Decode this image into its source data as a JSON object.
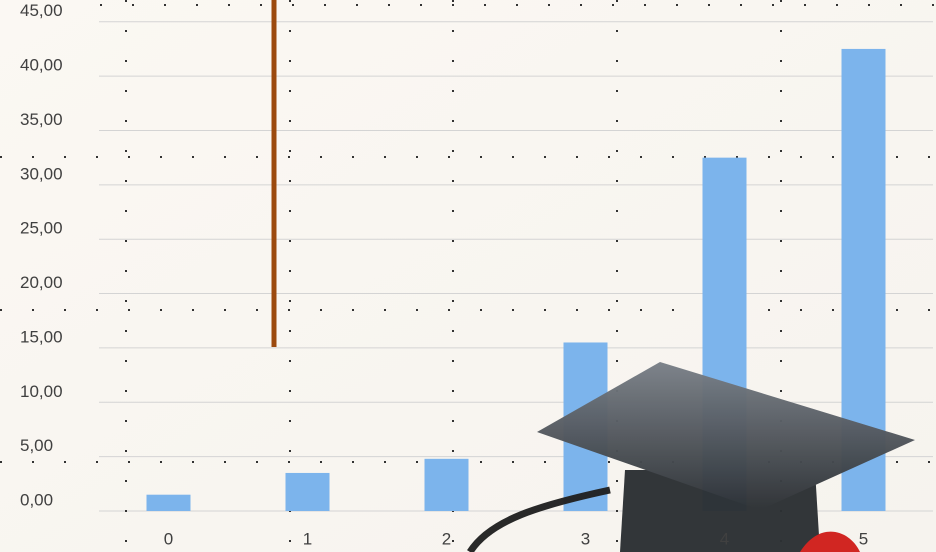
{
  "chart_data": {
    "type": "bar",
    "categories": [
      "0",
      "1",
      "2",
      "3",
      "4",
      "5"
    ],
    "values": [
      1.5,
      3.5,
      4.8,
      15.5,
      32.5,
      42.5
    ],
    "color": "#7cb4ec",
    "ylim": [
      0,
      47
    ],
    "yticks": [
      {
        "value": 0,
        "label": "0,00"
      },
      {
        "value": 5,
        "label": "5,00"
      },
      {
        "value": 10,
        "label": "10,00"
      },
      {
        "value": 15,
        "label": "15,00"
      },
      {
        "value": 20,
        "label": "20,00"
      },
      {
        "value": 25,
        "label": "25,00"
      },
      {
        "value": 30,
        "label": "30,00"
      },
      {
        "value": 35,
        "label": "35,00"
      },
      {
        "value": 40,
        "label": "40,00"
      },
      {
        "value": 45,
        "label": "45,00"
      }
    ],
    "grid": true
  }
}
